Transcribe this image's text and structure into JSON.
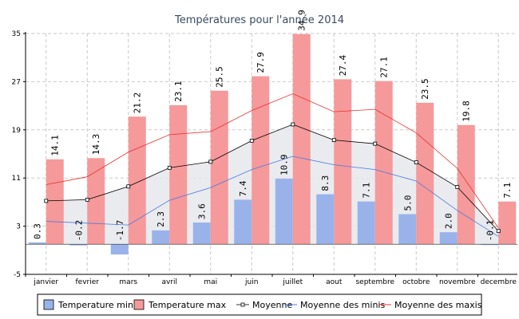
{
  "chart_data": {
    "type": "bar",
    "title": "Températures pour l'année 2014",
    "categories": [
      "janvier",
      "fevrier",
      "mars",
      "avril",
      "mai",
      "juin",
      "juillet",
      "aout",
      "septembre",
      "octobre",
      "novembre",
      "decembre"
    ],
    "ylim": [
      -5,
      35
    ],
    "yticks": [
      -5,
      3,
      11,
      19,
      27,
      35
    ],
    "grid": true,
    "legend_position": "bottom",
    "series": [
      {
        "name": "Temperature min",
        "kind": "bar",
        "color": "#99b3ea",
        "values": [
          0.3,
          -0.2,
          -1.7,
          2.3,
          3.6,
          7.4,
          10.9,
          8.3,
          7.1,
          5.0,
          2.0,
          -0.1
        ],
        "labels": [
          "0.3",
          "-0.2",
          "-1.7",
          "2.3",
          "3.6",
          "7.4",
          "10.9",
          "8.3",
          "7.1",
          "5.0",
          "2.0",
          "-0.1"
        ]
      },
      {
        "name": "Temperature max",
        "kind": "bar",
        "color": "#f5999a",
        "values": [
          14.1,
          14.3,
          21.2,
          23.1,
          25.5,
          27.9,
          34.9,
          27.4,
          27.1,
          23.5,
          19.8,
          7.1
        ],
        "labels": [
          "14.1",
          "14.3",
          "21.2",
          "23.1",
          "25.5",
          "27.9",
          "34.9",
          "27.4",
          "27.1",
          "23.5",
          "19.8",
          "7.1"
        ]
      },
      {
        "name": "Moyenne",
        "kind": "line-marker",
        "color": "#000000",
        "values": [
          7.2,
          7.4,
          9.6,
          12.7,
          13.7,
          17.2,
          19.9,
          17.3,
          16.7,
          13.6,
          9.5,
          2.2
        ]
      },
      {
        "name": "Moyenne des minis",
        "kind": "line",
        "color": "#4a78e0",
        "values": [
          3.8,
          3.5,
          3.2,
          7.3,
          9.4,
          12.4,
          14.6,
          13.2,
          12.4,
          10.5,
          5.6,
          1.3
        ]
      },
      {
        "name": "Moyenne des maxis",
        "kind": "line",
        "color": "#e83030",
        "values": [
          9.9,
          11.2,
          15.3,
          18.2,
          18.7,
          22.2,
          25.0,
          22.0,
          22.4,
          18.5,
          12.6,
          2.7
        ]
      }
    ]
  }
}
